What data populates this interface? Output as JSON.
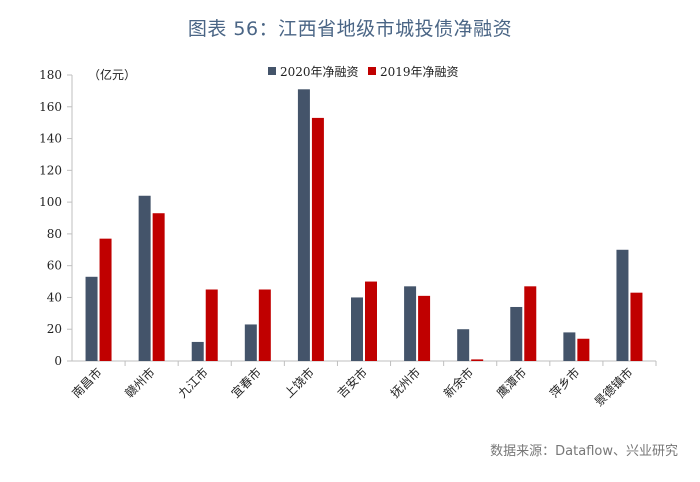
{
  "page": {
    "title": "图表 56：江西省地级市城投债净融资",
    "source": "数据来源：Dataflow、兴业研究"
  },
  "colors": {
    "series_2020": "#44546a",
    "series_2019": "#c00000"
  },
  "chart_data": {
    "type": "bar",
    "title": "图表 56：江西省地级市城投债净融资",
    "unit_label": "（亿元）",
    "categories": [
      "南昌市",
      "赣州市",
      "九江市",
      "宜春市",
      "上饶市",
      "吉安市",
      "抚州市",
      "新余市",
      "鹰潭市",
      "萍乡市",
      "景德镇市"
    ],
    "series": [
      {
        "name": "2020年净融资",
        "values": [
          53,
          104,
          12,
          23,
          171,
          40,
          47,
          20,
          34,
          18,
          70
        ]
      },
      {
        "name": "2019年净融资",
        "values": [
          77,
          93,
          45,
          45,
          153,
          50,
          41,
          1,
          47,
          14,
          43
        ]
      }
    ],
    "ylim": [
      0,
      180
    ],
    "yticks": [
      0,
      20,
      40,
      60,
      80,
      100,
      120,
      140,
      160,
      180
    ],
    "grid": false,
    "legend_position": "top-center"
  }
}
